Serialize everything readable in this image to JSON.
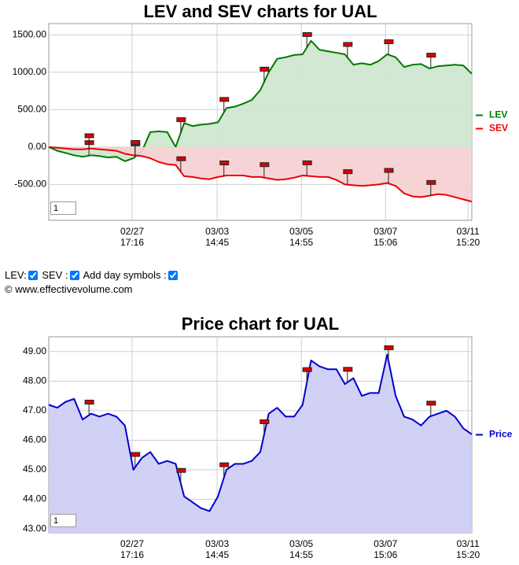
{
  "chart_data": [
    {
      "type": "area",
      "title": "LEV and SEV charts for UAL",
      "zoom": "1",
      "x": [
        0,
        2,
        4,
        6,
        8,
        10,
        12,
        14,
        16,
        18,
        20,
        22,
        24,
        26,
        28,
        30,
        32,
        34,
        36,
        38,
        40,
        42,
        44,
        46,
        48,
        50,
        52,
        54,
        56,
        58,
        60,
        62,
        64,
        66,
        68,
        70,
        72,
        74,
        76,
        78,
        80,
        82,
        84,
        86,
        88,
        90,
        92,
        94,
        96,
        98,
        100
      ],
      "xlim": [
        0,
        100
      ],
      "xticks": [
        {
          "value": 19.7,
          "label": "02/27\n17:16"
        },
        {
          "value": 39.8,
          "label": "03/03\n14:45"
        },
        {
          "value": 59.7,
          "label": "03/05\n14:55"
        },
        {
          "value": 79.6,
          "label": "03/07\n15:06"
        },
        {
          "value": 99.1,
          "label": "03/11\n15:20"
        }
      ],
      "ylim": [
        -980,
        1650
      ],
      "yticks": [
        {
          "value": -500,
          "label": "-500.00"
        },
        {
          "value": 0,
          "label": "0.00"
        },
        {
          "value": 500,
          "label": "500.00"
        },
        {
          "value": 1000,
          "label": "1000.00"
        },
        {
          "value": 1500,
          "label": "1500.00"
        }
      ],
      "grid": true,
      "legend": "right",
      "day_markers": [
        9.5,
        20.4,
        31.2,
        41.4,
        50.9,
        61.0,
        70.6,
        80.3,
        90.3
      ],
      "series": [
        {
          "name": "LEV",
          "color": "#007a00",
          "fill": "#cde6cd",
          "values": [
            0,
            -50,
            -80,
            -110,
            -130,
            -110,
            -120,
            -140,
            -130,
            -190,
            -150,
            -60,
            200,
            210,
            200,
            0,
            320,
            280,
            300,
            310,
            330,
            520,
            540,
            580,
            630,
            760,
            1000,
            1180,
            1200,
            1230,
            1240,
            1420,
            1300,
            1280,
            1260,
            1240,
            1100,
            1120,
            1100,
            1150,
            1240,
            1200,
            1070,
            1100,
            1110,
            1050,
            1080,
            1090,
            1100,
            1090,
            980
          ]
        },
        {
          "name": "SEV",
          "color": "#ee0000",
          "fill": "#f5cfd2",
          "values": [
            0,
            -10,
            -20,
            -30,
            -30,
            -20,
            -30,
            -40,
            -50,
            -90,
            -110,
            -120,
            -150,
            -200,
            -230,
            -240,
            -390,
            -400,
            -420,
            -430,
            -400,
            -380,
            -380,
            -380,
            -400,
            -400,
            -420,
            -440,
            -430,
            -410,
            -380,
            -390,
            -400,
            -400,
            -440,
            -500,
            -510,
            -520,
            -510,
            -500,
            -480,
            -520,
            -620,
            -660,
            -670,
            -650,
            -630,
            -640,
            -670,
            -700,
            -730
          ]
        }
      ]
    },
    {
      "type": "area",
      "title": "Price chart for UAL",
      "zoom": "1",
      "x": [
        0,
        2,
        4,
        6,
        8,
        10,
        12,
        14,
        16,
        18,
        20,
        22,
        24,
        26,
        28,
        30,
        32,
        34,
        36,
        38,
        40,
        42,
        44,
        46,
        48,
        50,
        52,
        54,
        56,
        58,
        60,
        62,
        64,
        66,
        68,
        70,
        72,
        74,
        76,
        78,
        80,
        82,
        84,
        86,
        88,
        90,
        92,
        94,
        96,
        98,
        100
      ],
      "xlim": [
        0,
        100
      ],
      "xticks": [
        {
          "value": 19.7,
          "label": "02/27\n17:16"
        },
        {
          "value": 39.8,
          "label": "03/03\n14:45"
        },
        {
          "value": 59.7,
          "label": "03/05\n14:55"
        },
        {
          "value": 79.6,
          "label": "03/07\n15:06"
        },
        {
          "value": 99.1,
          "label": "03/11\n15:20"
        }
      ],
      "ylim": [
        42.87,
        49.5
      ],
      "yticks": [
        {
          "value": 43,
          "label": "43.00"
        },
        {
          "value": 44,
          "label": "44.00"
        },
        {
          "value": 45,
          "label": "45.00"
        },
        {
          "value": 46,
          "label": "46.00"
        },
        {
          "value": 47,
          "label": "47.00"
        },
        {
          "value": 48,
          "label": "48.00"
        },
        {
          "value": 49,
          "label": "49.00"
        }
      ],
      "grid": true,
      "legend": "right",
      "day_markers": [
        9.5,
        20.4,
        31.2,
        41.4,
        50.9,
        61.0,
        70.6,
        80.3,
        90.3
      ],
      "series": [
        {
          "name": "Price",
          "color": "#0000cc",
          "fill": "#ccccf5",
          "values": [
            47.2,
            47.1,
            47.3,
            47.4,
            46.7,
            46.9,
            46.8,
            46.9,
            46.8,
            46.5,
            45.0,
            45.4,
            45.6,
            45.2,
            45.3,
            45.2,
            44.1,
            43.9,
            43.7,
            43.6,
            44.1,
            45.0,
            45.2,
            45.2,
            45.3,
            45.6,
            46.9,
            47.1,
            46.8,
            46.8,
            47.2,
            48.7,
            48.5,
            48.4,
            48.4,
            47.9,
            48.1,
            47.5,
            47.6,
            47.6,
            48.9,
            47.5,
            46.8,
            46.7,
            46.5,
            46.8,
            46.9,
            47.0,
            46.8,
            46.4,
            46.2
          ]
        }
      ]
    }
  ],
  "controls": {
    "lev": "LEV:",
    "sev": "SEV :",
    "day_symbols": "Add day symbols :",
    "copyright": "© www.effectivevolume.com"
  }
}
